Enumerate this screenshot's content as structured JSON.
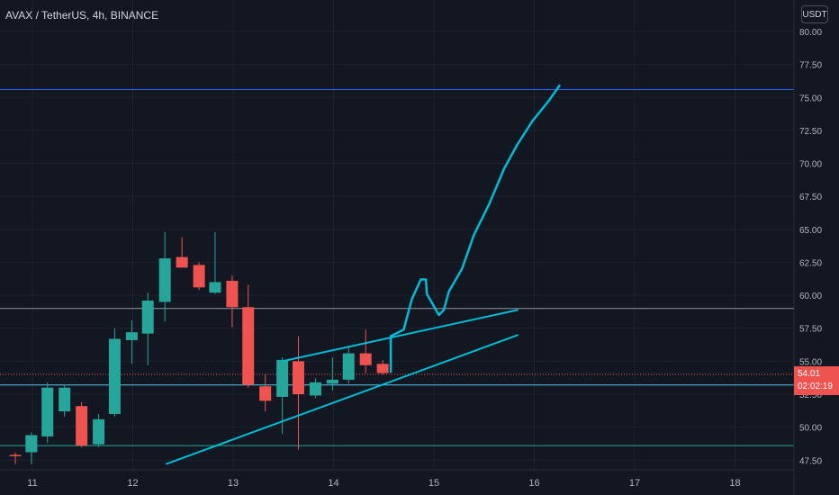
{
  "header": {
    "symbol_line": "AVAX / TetherUS, 4h, BINANCE"
  },
  "axis_menu": {
    "currency_label": "USDT"
  },
  "current_price": {
    "price": "54.01",
    "countdown": "02:02:19",
    "color": "#ef5350"
  },
  "chart_data": {
    "type": "candlestick",
    "title": "AVAX / TetherUS, 4h, BINANCE",
    "ylim": [
      47,
      81
    ],
    "y_ticks": [
      "80.00",
      "77.50",
      "75.00",
      "72.50",
      "70.00",
      "67.50",
      "65.00",
      "62.50",
      "60.00",
      "57.50",
      "55.00",
      "52.50",
      "50.00",
      "47.50"
    ],
    "x_ticks": [
      11,
      12,
      13,
      14,
      15,
      16,
      17,
      18
    ],
    "x_tick_labels": [
      "11",
      "12",
      "13",
      "14",
      "15",
      "16",
      "17",
      "18"
    ],
    "candles": [
      {
        "t": 10.83,
        "o": 47.9,
        "h": 48.1,
        "l": 47.2,
        "c": 47.8
      },
      {
        "t": 10.99,
        "o": 48.1,
        "h": 49.6,
        "l": 47.2,
        "c": 49.4
      },
      {
        "t": 11.15,
        "o": 49.3,
        "h": 53.4,
        "l": 48.8,
        "c": 53.0
      },
      {
        "t": 11.32,
        "o": 51.2,
        "h": 53.2,
        "l": 50.8,
        "c": 53.0
      },
      {
        "t": 11.49,
        "o": 51.6,
        "h": 51.9,
        "l": 48.5,
        "c": 48.6
      },
      {
        "t": 11.66,
        "o": 48.7,
        "h": 51.0,
        "l": 48.5,
        "c": 50.6
      },
      {
        "t": 11.82,
        "o": 51.0,
        "h": 57.5,
        "l": 50.8,
        "c": 56.7
      },
      {
        "t": 11.99,
        "o": 56.6,
        "h": 58.1,
        "l": 54.8,
        "c": 57.2
      },
      {
        "t": 12.15,
        "o": 57.1,
        "h": 60.2,
        "l": 54.7,
        "c": 59.6
      },
      {
        "t": 12.32,
        "o": 59.5,
        "h": 64.8,
        "l": 58.0,
        "c": 62.8
      },
      {
        "t": 12.49,
        "o": 62.9,
        "h": 64.4,
        "l": 62.1,
        "c": 62.1
      },
      {
        "t": 12.66,
        "o": 62.3,
        "h": 62.5,
        "l": 60.4,
        "c": 60.6
      },
      {
        "t": 12.82,
        "o": 60.2,
        "h": 64.8,
        "l": 60.1,
        "c": 61.0
      },
      {
        "t": 12.99,
        "o": 61.1,
        "h": 61.5,
        "l": 57.6,
        "c": 59.1
      },
      {
        "t": 13.15,
        "o": 59.1,
        "h": 60.8,
        "l": 53.0,
        "c": 53.2
      },
      {
        "t": 13.32,
        "o": 53.1,
        "h": 54.0,
        "l": 51.2,
        "c": 52.0
      },
      {
        "t": 13.49,
        "o": 52.3,
        "h": 55.3,
        "l": 49.5,
        "c": 55.1
      },
      {
        "t": 13.65,
        "o": 55.0,
        "h": 56.9,
        "l": 48.3,
        "c": 52.5
      },
      {
        "t": 13.82,
        "o": 52.4,
        "h": 53.7,
        "l": 52.2,
        "c": 53.4
      },
      {
        "t": 13.99,
        "o": 53.3,
        "h": 55.3,
        "l": 52.8,
        "c": 53.6
      },
      {
        "t": 14.15,
        "o": 53.6,
        "h": 56.1,
        "l": 53.3,
        "c": 55.6
      },
      {
        "t": 14.32,
        "o": 55.6,
        "h": 57.4,
        "l": 54.1,
        "c": 54.7
      },
      {
        "t": 14.49,
        "o": 54.8,
        "h": 55.1,
        "l": 54.0,
        "c": 54.1
      }
    ],
    "horizontal_lines": [
      {
        "price": 75.6,
        "color": "#2962ff"
      },
      {
        "price": 59.0,
        "color": "#9598a1"
      },
      {
        "price": 53.2,
        "color": "#56c8f0"
      },
      {
        "price": 48.6,
        "color": "#26a69a"
      },
      {
        "price": 54.01,
        "color": "#ef5350",
        "dotted": true
      }
    ],
    "trendlines": [
      {
        "from": [
          13.49,
          55.0
        ],
        "to": [
          15.84,
          58.9
        ]
      },
      {
        "from": [
          12.33,
          47.2
        ],
        "to": [
          15.84,
          57.0
        ]
      }
    ],
    "projection_path": [
      [
        14.57,
        54.2
      ],
      [
        14.57,
        56.9
      ],
      [
        14.7,
        57.4
      ],
      [
        14.78,
        59.7
      ],
      [
        14.87,
        61.2
      ],
      [
        14.92,
        61.2
      ],
      [
        14.93,
        60.1
      ],
      [
        15.05,
        58.5
      ],
      [
        15.1,
        58.9
      ],
      [
        15.15,
        60.3
      ],
      [
        15.28,
        62.0
      ],
      [
        15.4,
        64.6
      ],
      [
        15.55,
        66.9
      ],
      [
        15.7,
        69.6
      ],
      [
        15.83,
        71.4
      ],
      [
        15.98,
        73.2
      ],
      [
        16.15,
        74.8
      ],
      [
        16.25,
        75.9
      ]
    ],
    "up_color": "#26a69a",
    "down_color": "#ef5350",
    "drawing_color": "#00bcd4"
  }
}
